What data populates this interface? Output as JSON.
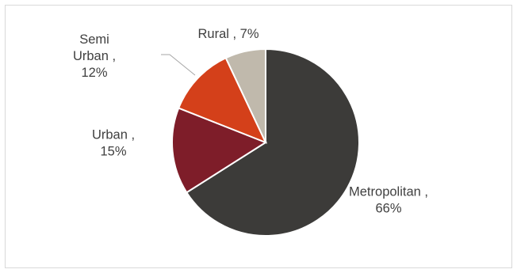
{
  "chart_data": {
    "type": "pie",
    "title": "",
    "slices": [
      {
        "category": "Metropolitan",
        "value": 66,
        "color": "#3c3b39",
        "label_lines": [
          "Metropolitan ,",
          "66%"
        ]
      },
      {
        "category": "Urban",
        "value": 15,
        "color": "#7e1d29",
        "label_lines": [
          "Urban ,",
          "15%"
        ]
      },
      {
        "category": "Semi Urban",
        "value": 12,
        "color": "#d4401a",
        "label_lines": [
          "Semi",
          "Urban ,",
          "12%"
        ]
      },
      {
        "category": "Rural",
        "value": 7,
        "color": "#c0b9ac",
        "label_lines": [
          "Rural , 7%"
        ]
      }
    ],
    "start_angle_deg": 0,
    "direction": "clockwise",
    "legend": "none",
    "leader_line_color": "#a6a6a6"
  }
}
